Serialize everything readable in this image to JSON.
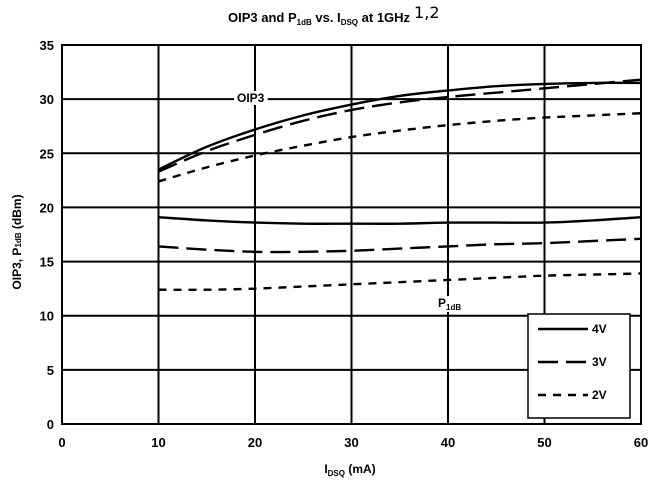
{
  "chart_data": {
    "type": "line",
    "title": {
      "main": "OIP3 and P",
      "main_sub": "1dB",
      "mid": " vs. I",
      "mid_sub": "DSQ",
      "tail": " at 1GHz",
      "superscript": "1,2"
    },
    "xlabel": {
      "main": "I",
      "sub": "DSQ",
      "tail": " (mA)"
    },
    "ylabel": {
      "main": "OIP3, P",
      "sub": "1dB",
      "tail": " (dBm)"
    },
    "xlim": [
      0,
      60
    ],
    "ylim": [
      0,
      35
    ],
    "xticks": [
      "0",
      "10",
      "20",
      "30",
      "40",
      "50",
      "60"
    ],
    "yticks": [
      "0",
      "5",
      "10",
      "15",
      "20",
      "25",
      "30",
      "35"
    ],
    "grid": true,
    "legend_position": "bottom-right",
    "annotations": {
      "oip3": "OIP3",
      "p1db": {
        "main": "P",
        "sub": "1dB"
      }
    },
    "series": [
      {
        "name": "4V",
        "style": "solid",
        "group": "OIP3",
        "x": [
          10,
          15,
          20,
          25,
          30,
          35,
          40,
          45,
          50,
          55,
          60
        ],
        "y": [
          23.5,
          25.6,
          27.2,
          28.5,
          29.5,
          30.3,
          30.8,
          31.2,
          31.4,
          31.5,
          31.5
        ]
      },
      {
        "name": "3V",
        "style": "dash",
        "group": "OIP3",
        "x": [
          10,
          15,
          20,
          25,
          30,
          35,
          40,
          45,
          50,
          55,
          60
        ],
        "y": [
          23.3,
          25.2,
          26.7,
          28.0,
          29.0,
          29.7,
          30.2,
          30.6,
          31.0,
          31.4,
          31.8
        ]
      },
      {
        "name": "2V",
        "style": "shortdash",
        "group": "OIP3",
        "x": [
          10,
          15,
          20,
          25,
          30,
          35,
          40,
          45,
          50,
          55,
          60
        ],
        "y": [
          22.4,
          23.7,
          24.8,
          25.7,
          26.5,
          27.1,
          27.6,
          28.0,
          28.3,
          28.5,
          28.7
        ]
      },
      {
        "name": "4V",
        "style": "solid",
        "group": "P1dB",
        "x": [
          10,
          15,
          20,
          25,
          30,
          35,
          40,
          45,
          50,
          55,
          60
        ],
        "y": [
          19.1,
          18.8,
          18.6,
          18.5,
          18.5,
          18.5,
          18.6,
          18.6,
          18.6,
          18.8,
          19.1
        ]
      },
      {
        "name": "3V",
        "style": "dash",
        "group": "P1dB",
        "x": [
          10,
          15,
          20,
          25,
          30,
          35,
          40,
          45,
          50,
          55,
          60
        ],
        "y": [
          16.4,
          16.1,
          15.9,
          15.9,
          16.0,
          16.2,
          16.4,
          16.6,
          16.7,
          16.9,
          17.1
        ]
      },
      {
        "name": "2V",
        "style": "shortdash",
        "group": "P1dB",
        "x": [
          10,
          15,
          20,
          25,
          30,
          35,
          40,
          45,
          50,
          55,
          60
        ],
        "y": [
          12.4,
          12.4,
          12.5,
          12.7,
          12.9,
          13.1,
          13.3,
          13.5,
          13.7,
          13.8,
          13.9
        ]
      }
    ],
    "legend": [
      {
        "label": "4V",
        "style": "solid"
      },
      {
        "label": "3V",
        "style": "dash"
      },
      {
        "label": "2V",
        "style": "shortdash"
      }
    ]
  }
}
